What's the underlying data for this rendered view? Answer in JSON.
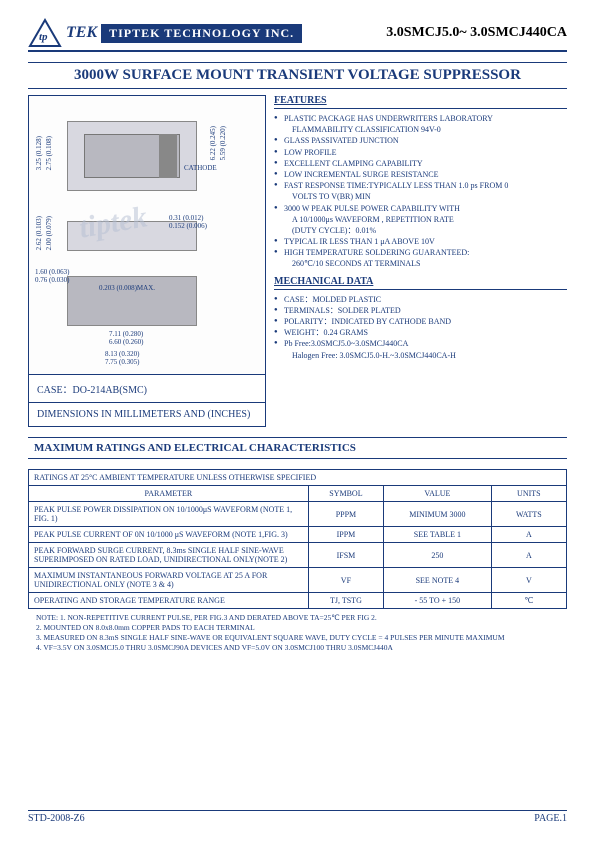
{
  "header": {
    "brand_prefix": "tp",
    "brand_text": "TEK",
    "company": "TIPTEK TECHNOLOGY INC.",
    "part_range": "3.0SMCJ5.0~ 3.0SMCJ440CA"
  },
  "title": "3000W SURFACE MOUNT TRANSIENT VOLTAGE SUPPRESSOR",
  "diagram": {
    "cathode_label": "CATHODE",
    "dims": {
      "h1": "3.25 (0.128)",
      "h2": "2.75 (0.108)",
      "r1": "6.22 (0.245)",
      "r2": "5.59 (0.220)",
      "s1": "2.62 (0.103)",
      "s2": "2.00 (0.079)",
      "tab1": "0.31 (0.012)",
      "tab2": "0.152 (0.006)",
      "lead1": "1.60 (0.063)",
      "lead2": "0.76 (0.030)",
      "lmax": "0.203 (0.008)MAX.",
      "w1": "7.11 (0.280)",
      "w2": "6.60 (0.260)",
      "w3": "8.13 (0.320)",
      "w4": "7.75 (0.305)"
    },
    "case_line": "CASE：DO-214AB(SMC)",
    "dim_note": "DIMENSIONS IN MILLIMETERS AND (INCHES)"
  },
  "features": {
    "header": "FEATURES",
    "items": [
      {
        "t": "PLASTIC PACKAGE HAS UNDERWRITERS LABORATORY",
        "dot": true
      },
      {
        "t": "FLAMMABILITY CLASSIFICATION 94V-0",
        "dot": false,
        "indent": true
      },
      {
        "t": "GLASS PASSIVATED JUNCTION",
        "dot": true
      },
      {
        "t": "LOW PROFILE",
        "dot": true
      },
      {
        "t": "EXCELLENT CLAMPING CAPABILITY",
        "dot": true
      },
      {
        "t": "LOW INCREMENTAL SURGE RESISTANCE",
        "dot": true
      },
      {
        "t": "FAST RESPONSE TIME:TYPICALLY LESS THAN 1.0 ps FROM   0",
        "dot": true
      },
      {
        "t": "VOLTS TO V(BR) MIN",
        "dot": false,
        "indent": true
      },
      {
        "t": "3000 W PEAK PULSE POWER CAPABILITY WITH",
        "dot": true
      },
      {
        "t": "A 10/1000μs WAVEFORM , REPETITION RATE",
        "dot": false,
        "indent": true
      },
      {
        "t": "(DUTY CYCLE)：0.01%",
        "dot": false,
        "indent": true
      },
      {
        "t": "TYPICAL IR LESS THAN 1 μA ABOVE 10V",
        "dot": true
      },
      {
        "t": "HIGH TEMPERATURE SOLDERING GUARANTEED:",
        "dot": true
      },
      {
        "t": "260℃/10 SECONDS AT TERMINALS",
        "dot": false,
        "indent": true
      }
    ]
  },
  "mechanical": {
    "header": "MECHANICAL DATA",
    "items": [
      {
        "t": "CASE：MOLDED PLASTIC",
        "dot": true
      },
      {
        "t": "TERMINALS：SOLDER PLATED",
        "dot": true
      },
      {
        "t": "POLARITY：INDICATED BY CATHODE BAND",
        "dot": true
      },
      {
        "t": "WEIGHT：0.24 GRAMS",
        "dot": true
      },
      {
        "t": "Pb Free:3.0SMCJ5.0~3.0SMCJ440CA",
        "dot": true
      },
      {
        "t": "Halogen   Free: 3.0SMCJ5.0-H.~3.0SMCJ440CA-H",
        "dot": false,
        "indent": true
      }
    ]
  },
  "max_header": "MAXIMUM RATINGS AND ELECTRICAL CHARACTERISTICS",
  "table": {
    "cond": "RATINGS AT 25°C AMBIENT TEMPERATURE UNLESS OTHERWISE SPECIFIED",
    "cols": [
      "PARAMETER",
      "SYMBOL",
      "VALUE",
      "UNITS"
    ],
    "rows": [
      {
        "p": "PEAK PULSE POWER DISSIPATION ON 10/1000μS WAVEFORM (NOTE 1, FIG. 1)",
        "s": "PPPM",
        "v": "MINIMUM 3000",
        "u": "WATTS"
      },
      {
        "p": "PEAK PULSE CURRENT OF 0N 10/1000 μS WAVEFORM (NOTE 1,FIG. 3)",
        "s": "IPPM",
        "v": "SEE TABLE 1",
        "u": "A"
      },
      {
        "p": "PEAK FORWARD SURGE CURRENT, 8.3ms SINGLE HALF SINE-WAVE SUPERIMPOSED ON RATED LOAD, UNIDIRECTIONAL ONLY(NOTE 2)",
        "s": "IFSM",
        "v": "250",
        "u": "A"
      },
      {
        "p": "MAXIMUM INSTANTANEOUS FORWARD VOLTAGE AT 25 A FOR UNIDIRECTIONAL ONLY (NOTE 3 & 4)",
        "s": "VF",
        "v": "SEE NOTE 4",
        "u": "V"
      },
      {
        "p": "OPERATING AND STORAGE TEMPERATURE RANGE",
        "s": "TJ, TSTG",
        "v": "- 55 TO + 150",
        "u": "℃"
      }
    ]
  },
  "notes": {
    "lead": "NOTE:",
    "lines": [
      "1. NON-REPETITIVE CURRENT PULSE, PER FIG.3 AND DERATED ABOVE TA=25℃ PER FIG 2.",
      "2. MOUNTED ON 8.0x8.0mm COPPER PADS TO EACH TERMINAL",
      "3. MEASURED ON 8.3mS SINGLE HALF SINE-WAVE OR EQUIVALENT SQUARE WAVE, DUTY CYCLE = 4 PULSES PER MINUTE MAXIMUM",
      "4. VF=3.5V ON 3.0SMCJ5.0 THRU 3.0SMCJ90A DEVICES AND VF=5.0V ON 3.0SMCJ100 THRU 3.0SMCJ440A"
    ]
  },
  "footer": {
    "left": "STD-2008-Z6",
    "right": "PAGE.1"
  },
  "colors": {
    "primary": "#1a3a7a",
    "bg": "#ffffff",
    "pkg_light": "#d8d8e0",
    "pkg_dark": "#b8b8c0"
  }
}
